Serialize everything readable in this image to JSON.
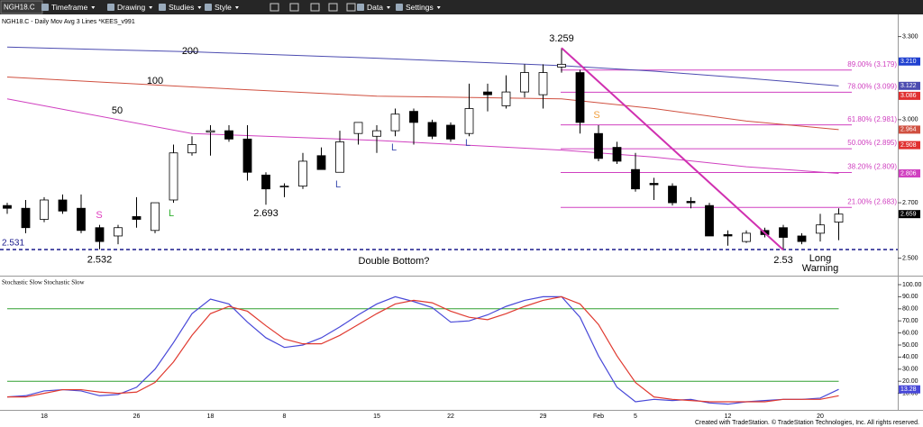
{
  "toolbar": {
    "symbol": "NGH18.C",
    "menus": [
      "Timeframe",
      "Drawing",
      "Studies",
      "Style",
      "Data",
      "Settings"
    ]
  },
  "chart_data": [
    {
      "type": "candlestick",
      "title": "NGH18.C - Daily  Mov Avg 3 Lines *KEES_v991",
      "categories": [
        null,
        null,
        "18",
        null,
        null,
        null,
        null,
        "26",
        null,
        null,
        null,
        "18",
        null,
        null,
        null,
        "8",
        null,
        null,
        null,
        null,
        "15",
        null,
        null,
        null,
        "22",
        null,
        null,
        null,
        null,
        "29",
        null,
        null,
        "Feb",
        null,
        "5",
        null,
        null,
        null,
        null,
        "12",
        null,
        null,
        null,
        null,
        "20",
        null
      ],
      "open": [
        2.69,
        2.68,
        2.64,
        2.71,
        2.68,
        2.61,
        2.58,
        2.65,
        2.6,
        2.71,
        2.88,
        2.955,
        2.96,
        2.93,
        2.8,
        2.76,
        2.76,
        2.87,
        2.81,
        2.95,
        2.94,
        2.96,
        3.03,
        2.99,
        2.98,
        2.95,
        3.1,
        3.05,
        3.1,
        3.09,
        3.19,
        3.17,
        2.95,
        2.9,
        2.82,
        2.77,
        2.76,
        2.705,
        2.69,
        2.585,
        2.56,
        2.6,
        2.61,
        2.58,
        2.59,
        2.63
      ],
      "high": [
        2.7,
        2.71,
        2.72,
        2.73,
        2.73,
        2.62,
        2.62,
        2.72,
        2.7,
        2.91,
        2.94,
        2.98,
        2.98,
        2.98,
        2.81,
        2.77,
        2.88,
        2.9,
        2.96,
        2.99,
        2.98,
        3.04,
        3.04,
        3.0,
        2.99,
        3.13,
        3.13,
        3.16,
        3.2,
        3.2,
        3.259,
        3.18,
        2.98,
        2.92,
        2.88,
        2.79,
        2.77,
        2.72,
        2.7,
        2.6,
        2.6,
        2.61,
        2.62,
        2.59,
        2.66,
        2.68
      ],
      "low": [
        2.66,
        2.59,
        2.63,
        2.66,
        2.59,
        2.532,
        2.55,
        2.61,
        2.59,
        2.7,
        2.87,
        2.87,
        2.92,
        2.78,
        2.693,
        2.72,
        2.75,
        2.82,
        2.81,
        2.91,
        2.88,
        2.94,
        2.91,
        2.93,
        2.92,
        2.94,
        3.03,
        3.04,
        3.08,
        3.04,
        3.17,
        2.95,
        2.85,
        2.84,
        2.74,
        2.71,
        2.69,
        2.68,
        2.58,
        2.545,
        2.555,
        2.575,
        2.53,
        2.55,
        2.56,
        2.565
      ],
      "close": [
        2.68,
        2.61,
        2.71,
        2.67,
        2.6,
        2.56,
        2.61,
        2.64,
        2.7,
        2.88,
        2.91,
        2.96,
        2.93,
        2.81,
        2.75,
        2.76,
        2.85,
        2.82,
        2.92,
        2.99,
        2.96,
        3.02,
        2.99,
        2.94,
        2.93,
        3.04,
        3.09,
        3.1,
        3.17,
        3.17,
        3.2,
        2.99,
        2.86,
        2.85,
        2.75,
        2.765,
        2.7,
        2.7,
        2.58,
        2.58,
        2.59,
        2.585,
        2.575,
        2.56,
        2.62,
        2.659
      ],
      "up_color": "#ffffff",
      "down_color": "#000000",
      "ylim": [
        2.44,
        3.38
      ],
      "yticks": [
        {
          "value": 2.5,
          "label": "2.500"
        },
        {
          "value": 2.7,
          "label": "2.700"
        },
        {
          "value": 3.0,
          "label": "3.000"
        },
        {
          "value": 3.3,
          "label": "3.300"
        }
      ],
      "moving_averages": [
        {
          "name": "200",
          "color": "#4b4bb0",
          "x": [
            0,
            10,
            20,
            30,
            35,
            40,
            45
          ],
          "values": [
            3.262,
            3.245,
            3.222,
            3.195,
            3.175,
            3.15,
            3.122
          ]
        },
        {
          "name": "100",
          "color": "#d05040",
          "x": [
            0,
            10,
            20,
            30,
            35,
            40,
            45
          ],
          "values": [
            3.154,
            3.118,
            3.085,
            3.075,
            3.04,
            2.995,
            2.964
          ]
        },
        {
          "name": "50",
          "color": "#d040c0",
          "x": [
            0,
            10,
            20,
            30,
            35,
            40,
            45
          ],
          "values": [
            3.075,
            2.95,
            2.925,
            2.89,
            2.865,
            2.83,
            2.806
          ]
        }
      ],
      "fib_color": "#d040c0",
      "fib_levels": [
        {
          "label": "89.00% (3.179)",
          "value": 3.179
        },
        {
          "label": "78.00% (3.099)",
          "value": 3.099
        },
        {
          "label": "61.80% (2.981)",
          "value": 2.981
        },
        {
          "label": "50.00% (2.895)",
          "value": 2.895
        },
        {
          "label": "38.20% (2.809)",
          "value": 2.809
        },
        {
          "label": "21.00% (2.683)",
          "value": 2.683
        }
      ],
      "support": {
        "label": "2.531",
        "value": 2.531,
        "color": "#1a1a8c"
      },
      "trendline_color": "#d030b0",
      "price_labels": [
        {
          "value": 3.21,
          "label": "3.210",
          "color": "#2040d0"
        },
        {
          "value": 3.086,
          "label": "3.086",
          "color": "#e03030"
        },
        {
          "value": 2.908,
          "label": "2.908",
          "color": "#e03030"
        }
      ],
      "annotations": [
        "Double Bottom?",
        "Long",
        "Warning"
      ],
      "signals": [
        {
          "text": "S",
          "color": "#e040c0"
        },
        {
          "text": "L",
          "color": "#30b030"
        },
        {
          "text": "L",
          "color": "#4050b0"
        },
        {
          "text": "L",
          "color": "#4050b0"
        },
        {
          "text": "L",
          "color": "#4050b0"
        },
        {
          "text": "S",
          "color": "#f0a040"
        }
      ]
    },
    {
      "type": "line",
      "title": "Stochastic Slow  Stochastic Slow",
      "ylim": [
        0,
        100
      ],
      "yticks": [
        {
          "value": 10,
          "label": "10.00"
        },
        {
          "value": 20,
          "label": "20.00"
        },
        {
          "value": 30,
          "label": "30.00"
        },
        {
          "value": 40,
          "label": "40.00"
        },
        {
          "value": 50,
          "label": "50.00"
        },
        {
          "value": 60,
          "label": "60.00"
        },
        {
          "value": 70,
          "label": "70.00"
        },
        {
          "value": 80,
          "label": "80.00"
        },
        {
          "value": 90,
          "label": "90.00"
        },
        {
          "value": 100,
          "label": "100.00"
        }
      ],
      "reference_lines": [
        80,
        20
      ],
      "reference_color": "#30a030",
      "series": [
        {
          "color": "#4848d8",
          "values": [
            7,
            8,
            12,
            13,
            12,
            8,
            9,
            15,
            30,
            52,
            76,
            88,
            84,
            69,
            56,
            48,
            50,
            56,
            65,
            75,
            84,
            90,
            86,
            81,
            69,
            70,
            75,
            82,
            87,
            90,
            90,
            73,
            41,
            15,
            3,
            5,
            4,
            5,
            2,
            1,
            3,
            4,
            5,
            5,
            6,
            13.28
          ]
        },
        {
          "color": "#e03a30",
          "values": [
            7,
            7,
            10,
            13,
            13,
            11,
            10,
            11,
            19,
            36,
            58,
            76,
            82,
            78,
            66,
            55,
            51,
            51,
            58,
            67,
            76,
            84,
            87,
            85,
            78,
            73,
            71,
            76,
            82,
            87,
            90,
            84,
            67,
            41,
            19,
            7,
            5,
            4,
            3,
            3,
            3,
            3,
            5,
            5,
            5,
            8
          ]
        }
      ]
    }
  ],
  "footer": "Created with TradeStation. © TradeStation Technologies, Inc. All rights reserved."
}
